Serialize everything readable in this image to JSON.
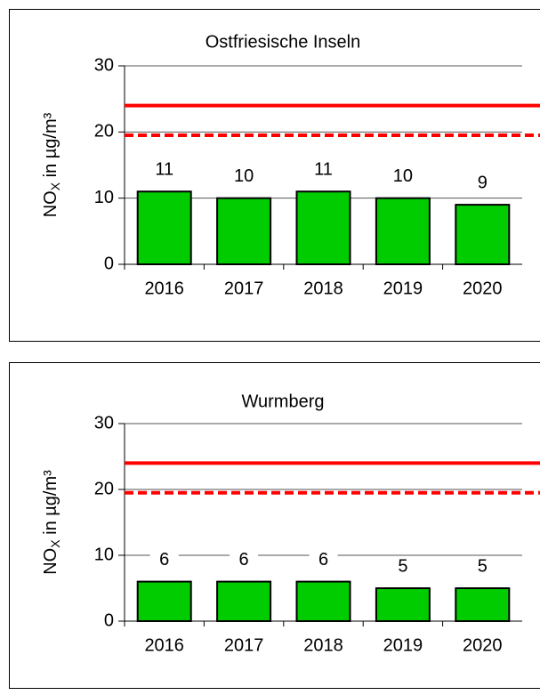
{
  "chart_data": [
    {
      "type": "bar",
      "title": "Ostfriesische Inseln",
      "ylabel": {
        "base": "NO",
        "sub": "X",
        "rest": " in µg/m³"
      },
      "categories": [
        "2016",
        "2017",
        "2018",
        "2019",
        "2020"
      ],
      "values": [
        11,
        10,
        11,
        10,
        9
      ],
      "color": "#00cc00",
      "ylim": [
        0,
        30
      ],
      "yticks": [
        0,
        10,
        20,
        30
      ],
      "grid": true,
      "reference_lines": [
        {
          "value": 24,
          "style": "solid",
          "color": "#ff0000"
        },
        {
          "value": 19.5,
          "style": "dashed",
          "color": "#ff0000"
        }
      ]
    },
    {
      "type": "bar",
      "title": "Wurmberg",
      "ylabel": {
        "base": "NO",
        "sub": "X",
        "rest": " in µg/m³"
      },
      "categories": [
        "2016",
        "2017",
        "2018",
        "2019",
        "2020"
      ],
      "values": [
        6,
        6,
        6,
        5,
        5
      ],
      "color": "#00cc00",
      "ylim": [
        0,
        30
      ],
      "yticks": [
        0,
        10,
        20,
        30
      ],
      "grid": true,
      "reference_lines": [
        {
          "value": 24,
          "style": "solid",
          "color": "#ff0000"
        },
        {
          "value": 19.5,
          "style": "dashed",
          "color": "#ff0000"
        }
      ]
    }
  ]
}
